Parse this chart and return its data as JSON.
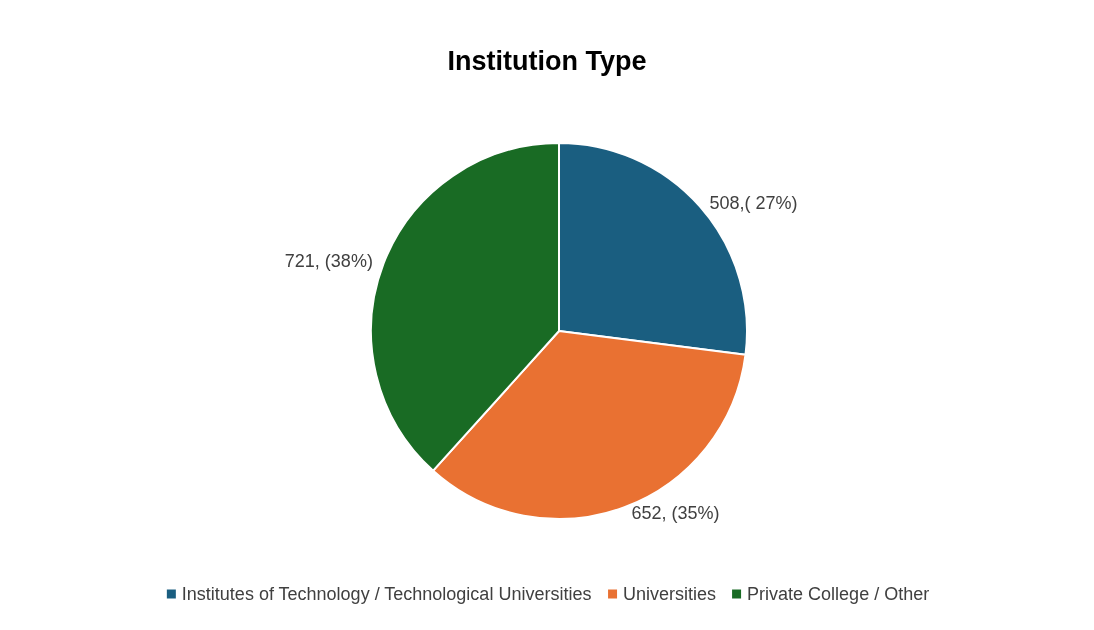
{
  "chart_data": {
    "type": "pie",
    "title": "Institution Type",
    "categories": [
      "Institutes of Technology / Technological Universities",
      "Universities",
      "Private College / Other"
    ],
    "values": [
      508,
      652,
      721
    ],
    "colors": [
      "#1a5e80",
      "#e97132",
      "#196b24"
    ],
    "value_labels": [
      "508,( 27%)",
      "652, (35%)",
      "721, (38%)"
    ],
    "legend": "bottom"
  }
}
